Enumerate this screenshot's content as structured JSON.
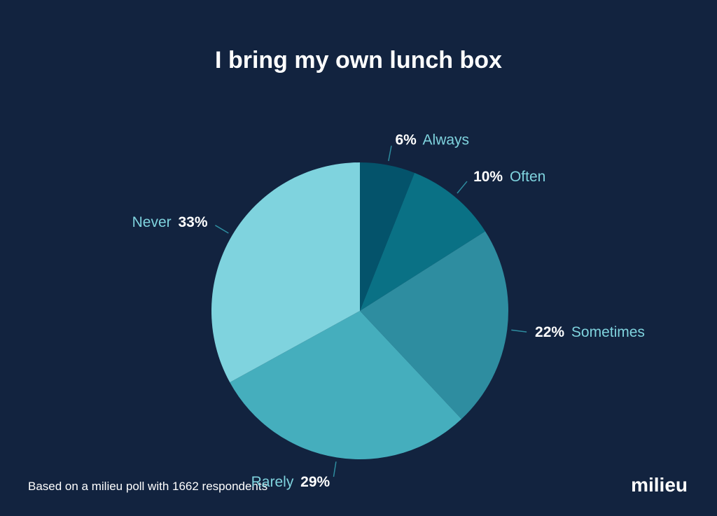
{
  "chart_data": {
    "type": "pie",
    "title": "I bring my own lunch box",
    "categories": [
      "Always",
      "Often",
      "Sometimes",
      "Rarely",
      "Never"
    ],
    "values": [
      6,
      10,
      22,
      29,
      33
    ],
    "value_labels": [
      "6%",
      "10%",
      "22%",
      "29%",
      "33%"
    ],
    "colors": [
      "#04536b",
      "#0a7185",
      "#2e8da0",
      "#45aebd",
      "#7fd3de"
    ],
    "source": "Based on a milieu poll with 1662 respondents",
    "brand": "milieu"
  }
}
